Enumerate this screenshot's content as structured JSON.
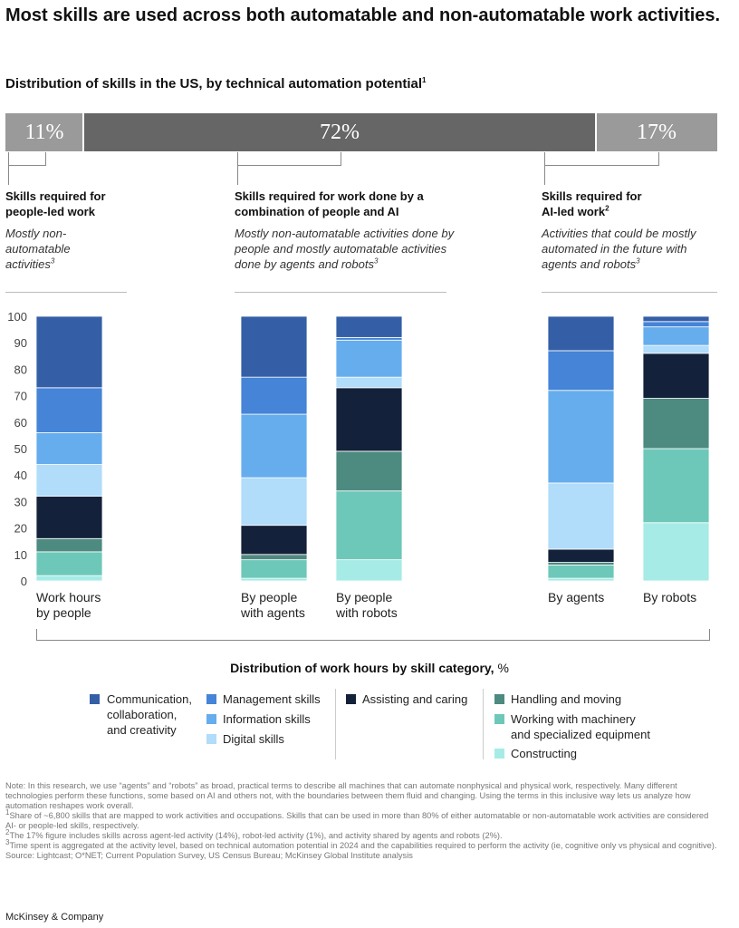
{
  "header": {
    "title": "Most skills are used across both automatable and non-automatable work activities.",
    "subtitle": "Distribution of skills in the US, by technical automation potential",
    "subtitle_sup": "1"
  },
  "distribution_bar": [
    {
      "label": "11%",
      "value": 11,
      "color": "#9a9a9a"
    },
    {
      "label": "72%",
      "value": 72,
      "color": "#666666"
    },
    {
      "label": "17%",
      "value": 17,
      "color": "#9a9a9a"
    }
  ],
  "groups": [
    {
      "heading": "Skills required for people-led work",
      "heading_sup": "",
      "description": "Mostly non-automatable activities",
      "description_sup": "3"
    },
    {
      "heading": "Skills required for work done by a combination of people and AI",
      "heading_sup": "",
      "description": "Mostly non-automatable activities done by people and mostly automatable activities done by agents and robots",
      "description_sup": "3"
    },
    {
      "heading": "Skills required for AI-led work",
      "heading_sup": "2",
      "description": "Activities that could be mostly automated in the future with agents and robots",
      "description_sup": "3"
    }
  ],
  "chart_data": {
    "type": "bar",
    "stacked": true,
    "title": "Distribution of work hours by skill category, %",
    "ylim": [
      0,
      100
    ],
    "yticks": [
      0,
      10,
      20,
      30,
      40,
      50,
      60,
      70,
      80,
      90,
      100
    ],
    "categories": [
      "Work hours by people",
      "By people with agents",
      "By people with robots",
      "By agents",
      "By robots"
    ],
    "series": [
      {
        "name": "Constructing",
        "color": "#a6ebe6",
        "values": [
          2,
          1,
          8,
          1,
          22
        ]
      },
      {
        "name": "Working with machinery and specialized equipment",
        "color": "#6dc8b9",
        "values": [
          9,
          7,
          26,
          5,
          28
        ]
      },
      {
        "name": "Handling and moving",
        "color": "#4d8a80",
        "values": [
          5,
          2,
          15,
          1,
          19
        ]
      },
      {
        "name": "Assisting and caring",
        "color": "#14213a",
        "values": [
          16,
          11,
          24,
          5,
          17
        ]
      },
      {
        "name": "Digital skills",
        "color": "#b1dcfa",
        "values": [
          12,
          18,
          4,
          25,
          3
        ]
      },
      {
        "name": "Information skills",
        "color": "#66adee",
        "values": [
          12,
          24,
          14,
          35,
          7
        ]
      },
      {
        "name": "Management skills",
        "color": "#4584d6",
        "values": [
          17,
          14,
          1,
          15,
          2
        ]
      },
      {
        "name": "Communication, collaboration, and creativity",
        "color": "#345fa7",
        "values": [
          27,
          23,
          8,
          13,
          2
        ]
      }
    ]
  },
  "category_labels": [
    {
      "line1": "Work hours",
      "line2": "by people"
    },
    {
      "line1": "By people",
      "line2": "with agents"
    },
    {
      "line1": "By people",
      "line2": "with robots"
    },
    {
      "line1": "By agents",
      "line2": ""
    },
    {
      "line1": "By robots",
      "line2": ""
    }
  ],
  "legend": {
    "title_bold": "Distribution of work hours by skill category,",
    "title_unit": "%",
    "comm_line1": "Communication,",
    "comm_line2": "collaboration,",
    "comm_line3": "and creativity",
    "management": "Management skills",
    "information": "Information skills",
    "digital": "Digital skills",
    "assisting": "Assisting and caring",
    "handling": "Handling and moving",
    "machinery_line1": "Working with machinery",
    "machinery_line2": "and specialized equipment",
    "constructing": "Constructing"
  },
  "notes": {
    "note": "Note: In this research, we use “agents” and “robots” as broad, practical terms to describe all machines that can automate nonphysical and physical work, respectively. Many different technologies perform these functions, some based on AI and others not, with the boundaries between them fluid and changing. Using the terms in this inclusive way lets us analyze how automation reshapes work overall.",
    "fn1": "Share of ~6,800 skills that are mapped to work activities and occupations. Skills that can be used in more than 80% of either automatable or non-automatable work activities are considered AI- or people-led skills, respectively.",
    "fn2": "The 17% figure includes skills across agent-led activity (14%), robot-led activity (1%), and activity shared by agents and robots (2%).",
    "fn3": "Time spent is aggregated at the activity level, based on technical automation potential in 2024 and the capabilities required to perform the activity (ie, cognitive only vs physical and cognitive).",
    "source": "Source: Lightcast; O*NET; Current Population Survey, US Census Bureau; McKinsey Global Institute analysis"
  },
  "brand": "McKinsey & Company"
}
